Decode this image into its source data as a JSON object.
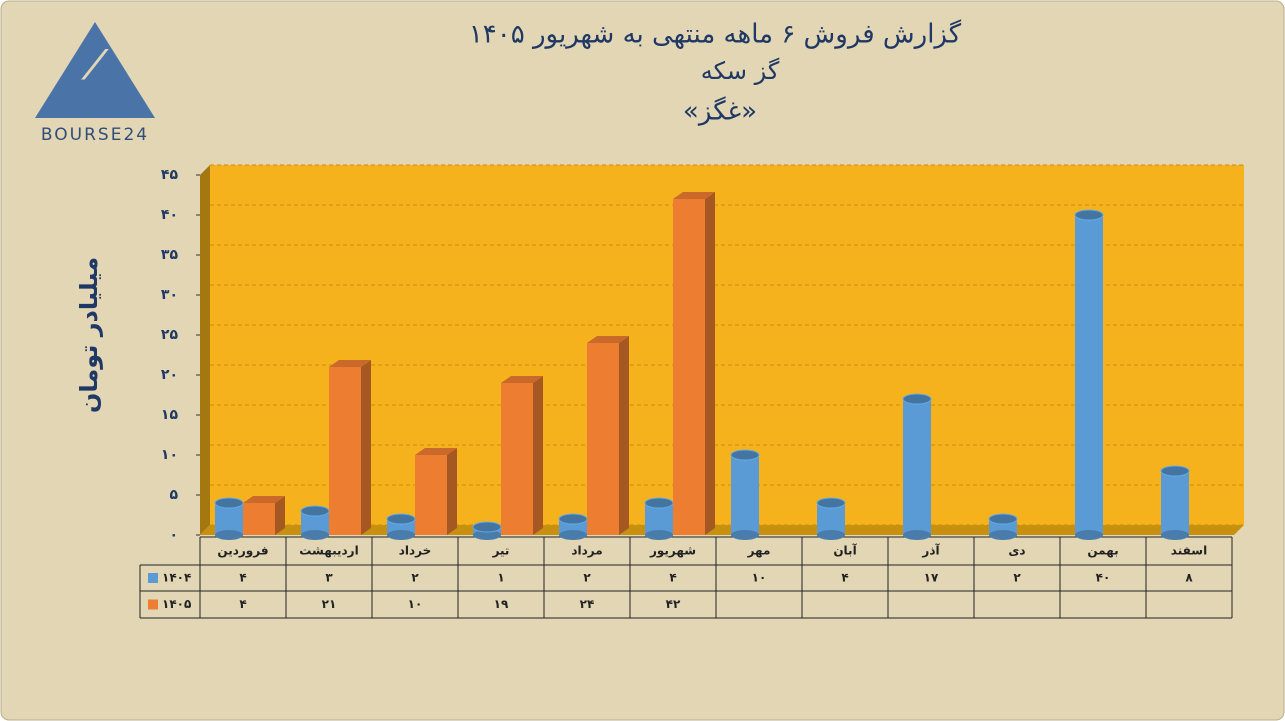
{
  "logo_text": "BOURSE24",
  "chart_data": {
    "type": "bar",
    "title": "گزارش  فروش ۶ ماهه منتهی به شهریور ۱۴۰۵",
    "subtitle": "گز سکه",
    "annotation": "«غگز»",
    "y_label": "میلیادر تومان",
    "categories": [
      "فروردین",
      "اردیبهشت",
      "خرداد",
      "تیر",
      "مرداد",
      "شهریور",
      "مهر",
      "آبان",
      "آذر",
      "دی",
      "بهمن",
      "اسفند"
    ],
    "series": [
      {
        "name": "۱۴۰۴",
        "color": "#5b9bd5",
        "values": [
          4,
          3,
          2,
          1,
          2,
          4,
          10,
          4,
          17,
          2,
          40,
          8
        ],
        "value_labels": [
          "۴",
          "۳",
          "۲",
          "۱",
          "۲",
          "۴",
          "۱۰",
          "۴",
          "۱۷",
          "۲",
          "۴۰",
          "۸"
        ]
      },
      {
        "name": "۱۴۰۵",
        "color": "#ed7d31",
        "values": [
          4,
          21,
          10,
          19,
          24,
          42,
          null,
          null,
          null,
          null,
          null,
          null
        ],
        "value_labels": [
          "۴",
          "۲۱",
          "۱۰",
          "۱۹",
          "۲۴",
          "۴۲",
          null,
          null,
          null,
          null,
          null,
          null
        ]
      }
    ],
    "ylim": [
      0,
      45
    ],
    "yticks": [
      {
        "value": 0,
        "label": "۰"
      },
      {
        "value": 5,
        "label": "۵"
      },
      {
        "value": 10,
        "label": "۱۰"
      },
      {
        "value": 15,
        "label": "۱۵"
      },
      {
        "value": 20,
        "label": "۲۰"
      },
      {
        "value": 25,
        "label": "۲۵"
      },
      {
        "value": 30,
        "label": "۳۰"
      },
      {
        "value": 35,
        "label": "۳۵"
      },
      {
        "value": 40,
        "label": "۴۰"
      },
      {
        "value": 45,
        "label": "۴۵"
      }
    ],
    "grid": true,
    "wall_color": "#f6b21c"
  }
}
